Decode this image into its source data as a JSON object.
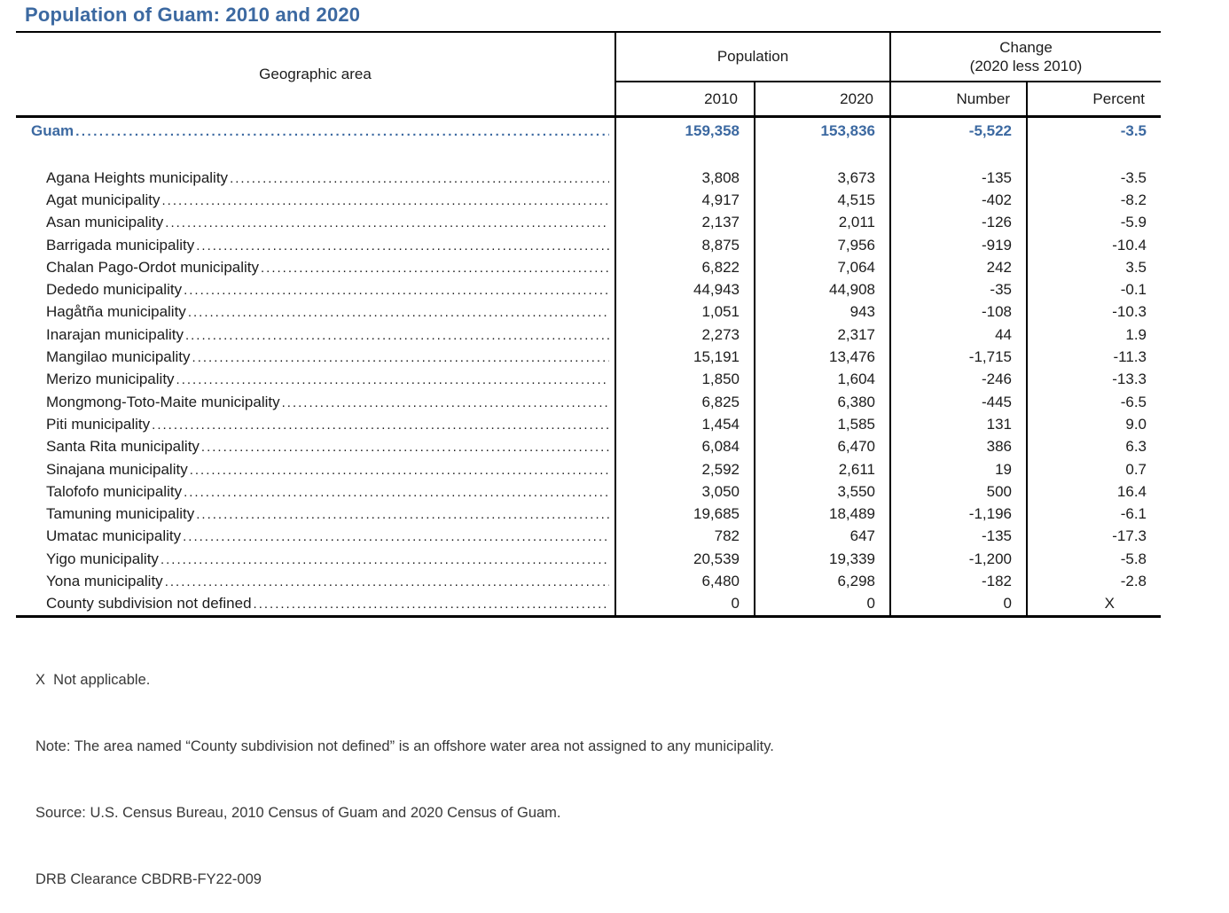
{
  "title": "Population of Guam: 2010 and 2020",
  "colors": {
    "accent_blue": "#3c69a1",
    "border": "#000000"
  },
  "table": {
    "headers": {
      "geo": "Geographic area",
      "population_group": "Population",
      "change_group_line1": "Change",
      "change_group_line2": "(2020 less 2010)",
      "col_2010": "2010",
      "col_2020": "2020",
      "col_number": "Number",
      "col_percent": "Percent"
    },
    "total_row": {
      "name": "Guam",
      "pop2010": "159,358",
      "pop2020": "153,836",
      "change_number": "-5,522",
      "change_percent": "-3.5"
    },
    "rows": [
      {
        "name": "Agana Heights municipality",
        "pop2010": "3,808",
        "pop2020": "3,673",
        "change_number": "-135",
        "change_percent": "-3.5"
      },
      {
        "name": "Agat municipality",
        "pop2010": "4,917",
        "pop2020": "4,515",
        "change_number": "-402",
        "change_percent": "-8.2"
      },
      {
        "name": "Asan municipality",
        "pop2010": "2,137",
        "pop2020": "2,011",
        "change_number": "-126",
        "change_percent": "-5.9"
      },
      {
        "name": "Barrigada municipality",
        "pop2010": "8,875",
        "pop2020": "7,956",
        "change_number": "-919",
        "change_percent": "-10.4"
      },
      {
        "name": "Chalan Pago-Ordot municipality",
        "pop2010": "6,822",
        "pop2020": "7,064",
        "change_number": "242",
        "change_percent": "3.5"
      },
      {
        "name": "Dededo municipality",
        "pop2010": "44,943",
        "pop2020": "44,908",
        "change_number": "-35",
        "change_percent": "-0.1"
      },
      {
        "name": "Hagåtña municipality",
        "pop2010": "1,051",
        "pop2020": "943",
        "change_number": "-108",
        "change_percent": "-10.3"
      },
      {
        "name": "Inarajan municipality",
        "pop2010": "2,273",
        "pop2020": "2,317",
        "change_number": "44",
        "change_percent": "1.9"
      },
      {
        "name": "Mangilao municipality",
        "pop2010": "15,191",
        "pop2020": "13,476",
        "change_number": "-1,715",
        "change_percent": "-11.3"
      },
      {
        "name": "Merizo municipality",
        "pop2010": "1,850",
        "pop2020": "1,604",
        "change_number": "-246",
        "change_percent": "-13.3"
      },
      {
        "name": "Mongmong-Toto-Maite municipality",
        "pop2010": "6,825",
        "pop2020": "6,380",
        "change_number": "-445",
        "change_percent": "-6.5"
      },
      {
        "name": "Piti municipality",
        "pop2010": "1,454",
        "pop2020": "1,585",
        "change_number": "131",
        "change_percent": "9.0"
      },
      {
        "name": "Santa Rita municipality",
        "pop2010": "6,084",
        "pop2020": "6,470",
        "change_number": "386",
        "change_percent": "6.3"
      },
      {
        "name": "Sinajana municipality",
        "pop2010": "2,592",
        "pop2020": "2,611",
        "change_number": "19",
        "change_percent": "0.7"
      },
      {
        "name": "Talofofo municipality",
        "pop2010": "3,050",
        "pop2020": "3,550",
        "change_number": "500",
        "change_percent": "16.4"
      },
      {
        "name": "Tamuning municipality",
        "pop2010": "19,685",
        "pop2020": "18,489",
        "change_number": "-1,196",
        "change_percent": "-6.1"
      },
      {
        "name": "Umatac municipality",
        "pop2010": "782",
        "pop2020": "647",
        "change_number": "-135",
        "change_percent": "-17.3"
      },
      {
        "name": "Yigo municipality",
        "pop2010": "20,539",
        "pop2020": "19,339",
        "change_number": "-1,200",
        "change_percent": "-5.8"
      },
      {
        "name": "Yona municipality",
        "pop2010": "6,480",
        "pop2020": "6,298",
        "change_number": "-182",
        "change_percent": "-2.8"
      },
      {
        "name": "County subdivision not defined",
        "pop2010": "0",
        "pop2020": "0",
        "change_number": "0",
        "change_percent": "X"
      }
    ]
  },
  "footnotes": [
    "X  Not applicable.",
    "Note: The area named “County subdivision not defined” is an offshore water area not assigned to any municipality.",
    "Source: U.S. Census Bureau, 2010 Census of Guam and 2020 Census of Guam.",
    "DRB Clearance CBDRB-FY22-009"
  ]
}
